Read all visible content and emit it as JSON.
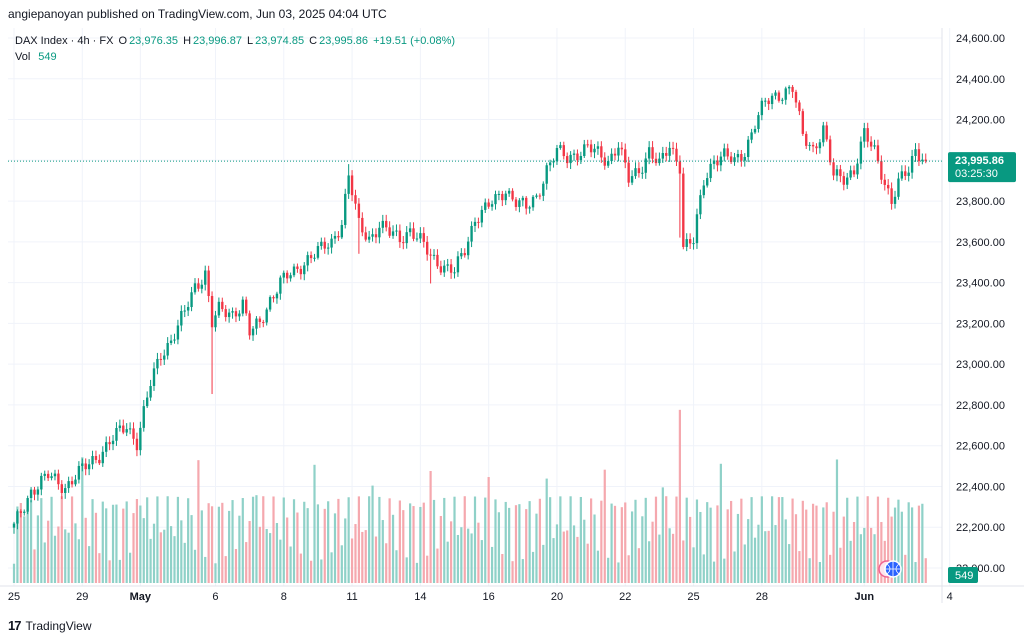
{
  "header": {
    "publisher_line": "angiepanoyan published on TradingView.com, Jun 03, 2025 04:04 UTC"
  },
  "legend": {
    "symbol": "DAX Index · 4h · FX",
    "open_label": "O",
    "open": "23,976.35",
    "high_label": "H",
    "high": "23,996.87",
    "low_label": "L",
    "low": "23,974.85",
    "close_label": "C",
    "close": "23,995.86",
    "change": "+19.51 (+0.08%)",
    "vol_label": "Vol",
    "vol": "549"
  },
  "price_badge": {
    "price": "23,995.86",
    "countdown": "03:25:30"
  },
  "volume_badge": "549",
  "footer": {
    "logo": "17",
    "brand": "TradingView"
  },
  "colors": {
    "up": "#089981",
    "down": "#f23645",
    "vol_up": "#8fd1c8",
    "vol_down": "#f5a8ae",
    "grid": "#f0f3fa"
  },
  "chart_data": {
    "type": "candlestick",
    "title": "DAX Index · 4h · FX",
    "y_ticks": [
      "24,600.00",
      "24,400.00",
      "24,200.00",
      "24,000.00",
      "23,800.00",
      "23,600.00",
      "23,400.00",
      "23,200.00",
      "23,000.00",
      "22,800.00",
      "22,600.00",
      "22,400.00",
      "22,200.00",
      "22,000.00"
    ],
    "ylim": [
      21930,
      24650
    ],
    "x_ticks": [
      {
        "label": "25",
        "idx": 0
      },
      {
        "label": "29",
        "idx": 20
      },
      {
        "label": "May",
        "idx": 37
      },
      {
        "label": "6",
        "idx": 59
      },
      {
        "label": "8",
        "idx": 79
      },
      {
        "label": "11",
        "idx": 99
      },
      {
        "label": "14",
        "idx": 119
      },
      {
        "label": "16",
        "idx": 139
      },
      {
        "label": "20",
        "idx": 159
      },
      {
        "label": "22",
        "idx": 179
      },
      {
        "label": "25",
        "idx": 199
      },
      {
        "label": "28",
        "idx": 219
      },
      {
        "label": "Jun",
        "idx": 249
      },
      {
        "label": "4",
        "idx": 274
      }
    ],
    "last_price": 23995.86,
    "anchors": [
      [
        0,
        22200
      ],
      [
        5,
        22380
      ],
      [
        10,
        22450
      ],
      [
        15,
        22400
      ],
      [
        20,
        22480
      ],
      [
        25,
        22560
      ],
      [
        30,
        22650
      ],
      [
        33,
        22700
      ],
      [
        36,
        22620
      ],
      [
        40,
        22900
      ],
      [
        43,
        23050
      ],
      [
        46,
        23120
      ],
      [
        50,
        23250
      ],
      [
        53,
        23380
      ],
      [
        56,
        23450
      ],
      [
        58,
        23200
      ],
      [
        60,
        23260
      ],
      [
        64,
        23250
      ],
      [
        67,
        23300
      ],
      [
        69,
        23150
      ],
      [
        72,
        23200
      ],
      [
        75,
        23320
      ],
      [
        78,
        23400
      ],
      [
        82,
        23450
      ],
      [
        86,
        23520
      ],
      [
        90,
        23560
      ],
      [
        93,
        23600
      ],
      [
        96,
        23700
      ],
      [
        98,
        23920
      ],
      [
        101,
        23680
      ],
      [
        104,
        23620
      ],
      [
        107,
        23680
      ],
      [
        110,
        23640
      ],
      [
        113,
        23620
      ],
      [
        116,
        23660
      ],
      [
        119,
        23600
      ],
      [
        122,
        23530
      ],
      [
        126,
        23480
      ],
      [
        129,
        23450
      ],
      [
        132,
        23560
      ],
      [
        135,
        23720
      ],
      [
        138,
        23760
      ],
      [
        141,
        23800
      ],
      [
        144,
        23860
      ],
      [
        147,
        23800
      ],
      [
        150,
        23760
      ],
      [
        153,
        23820
      ],
      [
        156,
        23960
      ],
      [
        159,
        24040
      ],
      [
        162,
        24010
      ],
      [
        165,
        24040
      ],
      [
        168,
        24060
      ],
      [
        171,
        24030
      ],
      [
        174,
        24000
      ],
      [
        177,
        24080
      ],
      [
        180,
        23900
      ],
      [
        183,
        23950
      ],
      [
        186,
        24050
      ],
      [
        189,
        23970
      ],
      [
        192,
        24070
      ],
      [
        195,
        23980
      ],
      [
        196,
        23580
      ],
      [
        199,
        23600
      ],
      [
        202,
        23900
      ],
      [
        205,
        24010
      ],
      [
        208,
        24020
      ],
      [
        211,
        23990
      ],
      [
        214,
        24050
      ],
      [
        217,
        24180
      ],
      [
        220,
        24280
      ],
      [
        223,
        24320
      ],
      [
        226,
        24340
      ],
      [
        228,
        24350
      ],
      [
        231,
        24120
      ],
      [
        234,
        24060
      ],
      [
        237,
        24150
      ],
      [
        240,
        23920
      ],
      [
        243,
        23920
      ],
      [
        246,
        23950
      ],
      [
        249,
        24120
      ],
      [
        252,
        24050
      ],
      [
        254,
        23950
      ],
      [
        257,
        23790
      ],
      [
        259,
        23880
      ],
      [
        262,
        23960
      ],
      [
        264,
        24060
      ],
      [
        267,
        23995.86
      ]
    ],
    "volume_ylim": [
      0,
      1400
    ],
    "volume_note": "Volume shown as histogram bars; last bar value 549"
  }
}
